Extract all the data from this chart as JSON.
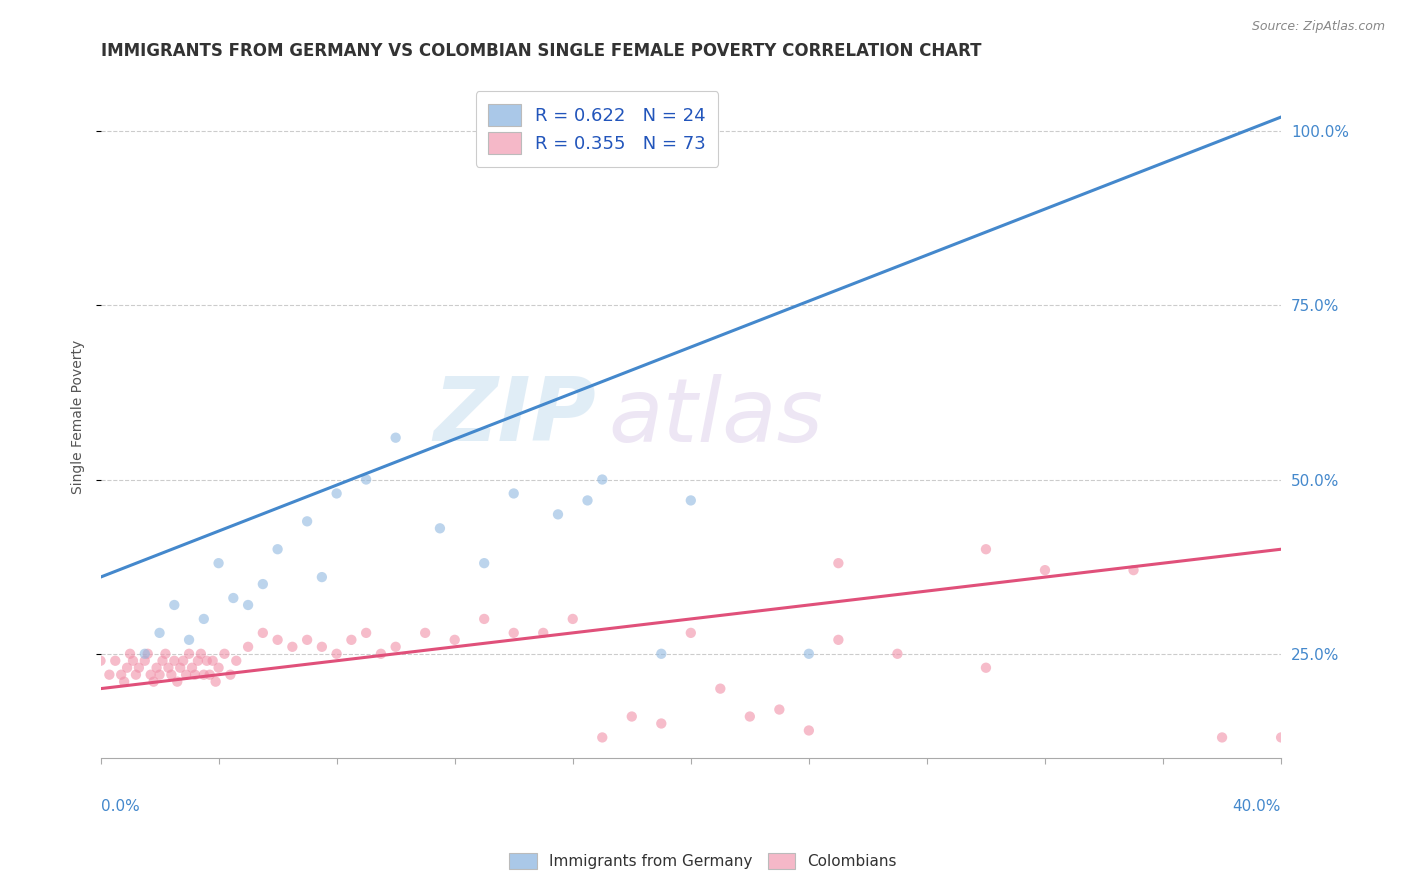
{
  "title": "IMMIGRANTS FROM GERMANY VS COLOMBIAN SINGLE FEMALE POVERTY CORRELATION CHART",
  "source": "Source: ZipAtlas.com",
  "ylabel": "Single Female Poverty",
  "ytick_values": [
    0.25,
    0.5,
    0.75,
    1.0
  ],
  "ytick_labels": [
    "25.0%",
    "50.0%",
    "75.0%",
    "100.0%"
  ],
  "xlim": [
    0.0,
    0.4
  ],
  "ylim": [
    0.1,
    1.08
  ],
  "legend_entries": [
    {
      "label": "R = 0.622   N = 24",
      "color": "#aac8e8"
    },
    {
      "label": "R = 0.355   N = 73",
      "color": "#f5b8c8"
    }
  ],
  "blue_color": "#90b8e0",
  "pink_color": "#f090a8",
  "blue_line_color": "#4488cc",
  "pink_line_color": "#e0507a",
  "blue_scatter_x": [
    0.015,
    0.02,
    0.025,
    0.03,
    0.035,
    0.04,
    0.045,
    0.05,
    0.055,
    0.06,
    0.07,
    0.075,
    0.08,
    0.09,
    0.1,
    0.115,
    0.13,
    0.14,
    0.155,
    0.165,
    0.17,
    0.19,
    0.2,
    0.24
  ],
  "blue_scatter_y": [
    0.25,
    0.28,
    0.32,
    0.27,
    0.3,
    0.38,
    0.33,
    0.32,
    0.35,
    0.4,
    0.44,
    0.36,
    0.48,
    0.5,
    0.56,
    0.43,
    0.38,
    0.48,
    0.45,
    0.47,
    0.5,
    0.25,
    0.47,
    0.25
  ],
  "pink_scatter_x": [
    0.0,
    0.003,
    0.005,
    0.007,
    0.008,
    0.009,
    0.01,
    0.011,
    0.012,
    0.013,
    0.015,
    0.016,
    0.017,
    0.018,
    0.019,
    0.02,
    0.021,
    0.022,
    0.023,
    0.024,
    0.025,
    0.026,
    0.027,
    0.028,
    0.029,
    0.03,
    0.031,
    0.032,
    0.033,
    0.034,
    0.035,
    0.036,
    0.037,
    0.038,
    0.039,
    0.04,
    0.042,
    0.044,
    0.046,
    0.05,
    0.055,
    0.06,
    0.065,
    0.07,
    0.075,
    0.08,
    0.085,
    0.09,
    0.095,
    0.1,
    0.11,
    0.12,
    0.13,
    0.14,
    0.15,
    0.16,
    0.17,
    0.18,
    0.19,
    0.2,
    0.21,
    0.22,
    0.23,
    0.24,
    0.25,
    0.27,
    0.3,
    0.32,
    0.35,
    0.38,
    0.4,
    0.25,
    0.3
  ],
  "pink_scatter_y": [
    0.24,
    0.22,
    0.24,
    0.22,
    0.21,
    0.23,
    0.25,
    0.24,
    0.22,
    0.23,
    0.24,
    0.25,
    0.22,
    0.21,
    0.23,
    0.22,
    0.24,
    0.25,
    0.23,
    0.22,
    0.24,
    0.21,
    0.23,
    0.24,
    0.22,
    0.25,
    0.23,
    0.22,
    0.24,
    0.25,
    0.22,
    0.24,
    0.22,
    0.24,
    0.21,
    0.23,
    0.25,
    0.22,
    0.24,
    0.26,
    0.28,
    0.27,
    0.26,
    0.27,
    0.26,
    0.25,
    0.27,
    0.28,
    0.25,
    0.26,
    0.28,
    0.27,
    0.3,
    0.28,
    0.28,
    0.3,
    0.13,
    0.16,
    0.15,
    0.28,
    0.2,
    0.16,
    0.17,
    0.14,
    0.27,
    0.25,
    0.23,
    0.37,
    0.37,
    0.13,
    0.13,
    0.38,
    0.4
  ],
  "blue_trend_x": [
    0.0,
    0.4
  ],
  "blue_trend_y": [
    0.36,
    1.02
  ],
  "pink_trend_x": [
    0.0,
    0.4
  ],
  "pink_trend_y": [
    0.2,
    0.4
  ],
  "watermark_zip": "ZIP",
  "watermark_atlas": "atlas",
  "background_color": "#ffffff",
  "grid_color": "#cccccc",
  "title_fontsize": 12,
  "axis_label_fontsize": 10,
  "scatter_size": 55,
  "scatter_alpha": 0.6,
  "legend_label_color": "#2255bb"
}
